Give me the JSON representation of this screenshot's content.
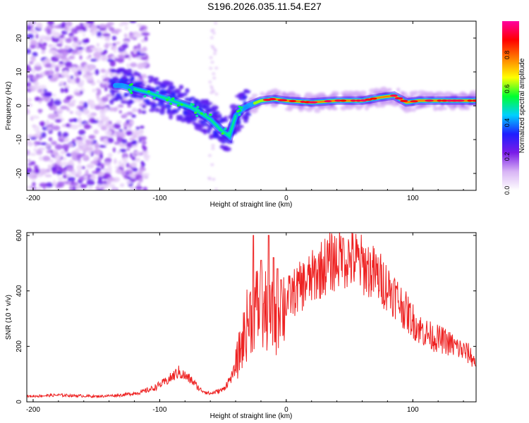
{
  "title": "S196.2026.035.11.54.E27",
  "chart_data": [
    {
      "type": "heatmap",
      "name": "spectrogram",
      "xlabel": "Height of straight line (km)",
      "ylabel": "Frequency (Hz)",
      "xlim": [
        -205,
        150
      ],
      "ylim": [
        -25,
        25
      ],
      "xticks": [
        -200,
        -100,
        0,
        100
      ],
      "xtick_labels": [
        "-200",
        "-100",
        "0",
        "100"
      ],
      "yticks": [
        -20,
        -10,
        0,
        10,
        20
      ],
      "ytick_labels": [
        "-20",
        "-10",
        "0",
        "10",
        "20"
      ],
      "colorbar": {
        "label": "Normalized spectral amplitude",
        "range": [
          0,
          1
        ],
        "ticks": [
          0.0,
          0.2,
          0.4,
          0.6,
          0.8
        ],
        "tick_labels": [
          "0.0",
          "0.2",
          "0.4",
          "0.6",
          "0.8"
        ],
        "stops": [
          "#ffffff",
          "#d8b4f5",
          "#7a1ce8",
          "#1e1eff",
          "#00d0ff",
          "#00ff30",
          "#ffff00",
          "#ff8000",
          "#ff0000",
          "#ff00a0"
        ]
      },
      "ridge": {
        "description": "dominant frequency trace",
        "x": [
          -130,
          -110,
          -90,
          -75,
          -60,
          -52,
          -45,
          -40,
          -35,
          -30,
          -20,
          -10,
          0,
          20,
          40,
          60,
          75,
          85,
          95,
          105,
          120,
          150
        ],
        "y": [
          6,
          4,
          1.5,
          -0.5,
          -4,
          -7,
          -9,
          -3,
          -1,
          0,
          1.5,
          2,
          1.5,
          1,
          1.5,
          1.5,
          2.5,
          3,
          1,
          1.5,
          1.5,
          1.5
        ]
      }
    },
    {
      "type": "line",
      "name": "snr",
      "xlabel": "Height of straight line (km)",
      "ylabel": "SNR (10 * v/v)",
      "xlim": [
        -205,
        150
      ],
      "ylim": [
        0,
        610
      ],
      "xticks": [
        -200,
        -100,
        0,
        100
      ],
      "xtick_labels": [
        "-200",
        "-100",
        "0",
        "100"
      ],
      "yticks": [
        0,
        200,
        400,
        600
      ],
      "ytick_labels": [
        "0",
        "200",
        "400",
        "600"
      ],
      "color": "#ee2222",
      "envelope": {
        "x": [
          -205,
          -180,
          -150,
          -130,
          -115,
          -105,
          -95,
          -85,
          -75,
          -68,
          -60,
          -50,
          -42,
          -35,
          -30,
          -25,
          -20,
          -15,
          -10,
          -5,
          0,
          10,
          20,
          30,
          40,
          45,
          55,
          65,
          75,
          85,
          95,
          105,
          115,
          125,
          135,
          145,
          150
        ],
        "y": [
          20,
          25,
          20,
          25,
          35,
          50,
          75,
          110,
          80,
          45,
          30,
          45,
          100,
          220,
          310,
          360,
          350,
          330,
          310,
          340,
          375,
          420,
          455,
          500,
          525,
          535,
          520,
          490,
          450,
          400,
          330,
          270,
          240,
          225,
          200,
          175,
          140
        ]
      },
      "spikes": [
        {
          "x": -26,
          "y": 600
        },
        {
          "x": -20,
          "y": 510
        },
        {
          "x": -14,
          "y": 600
        },
        {
          "x": -10,
          "y": 520
        },
        {
          "x": -7,
          "y": 480
        },
        {
          "x": -4,
          "y": 440
        },
        {
          "x": 45,
          "y": 590
        }
      ]
    }
  ]
}
